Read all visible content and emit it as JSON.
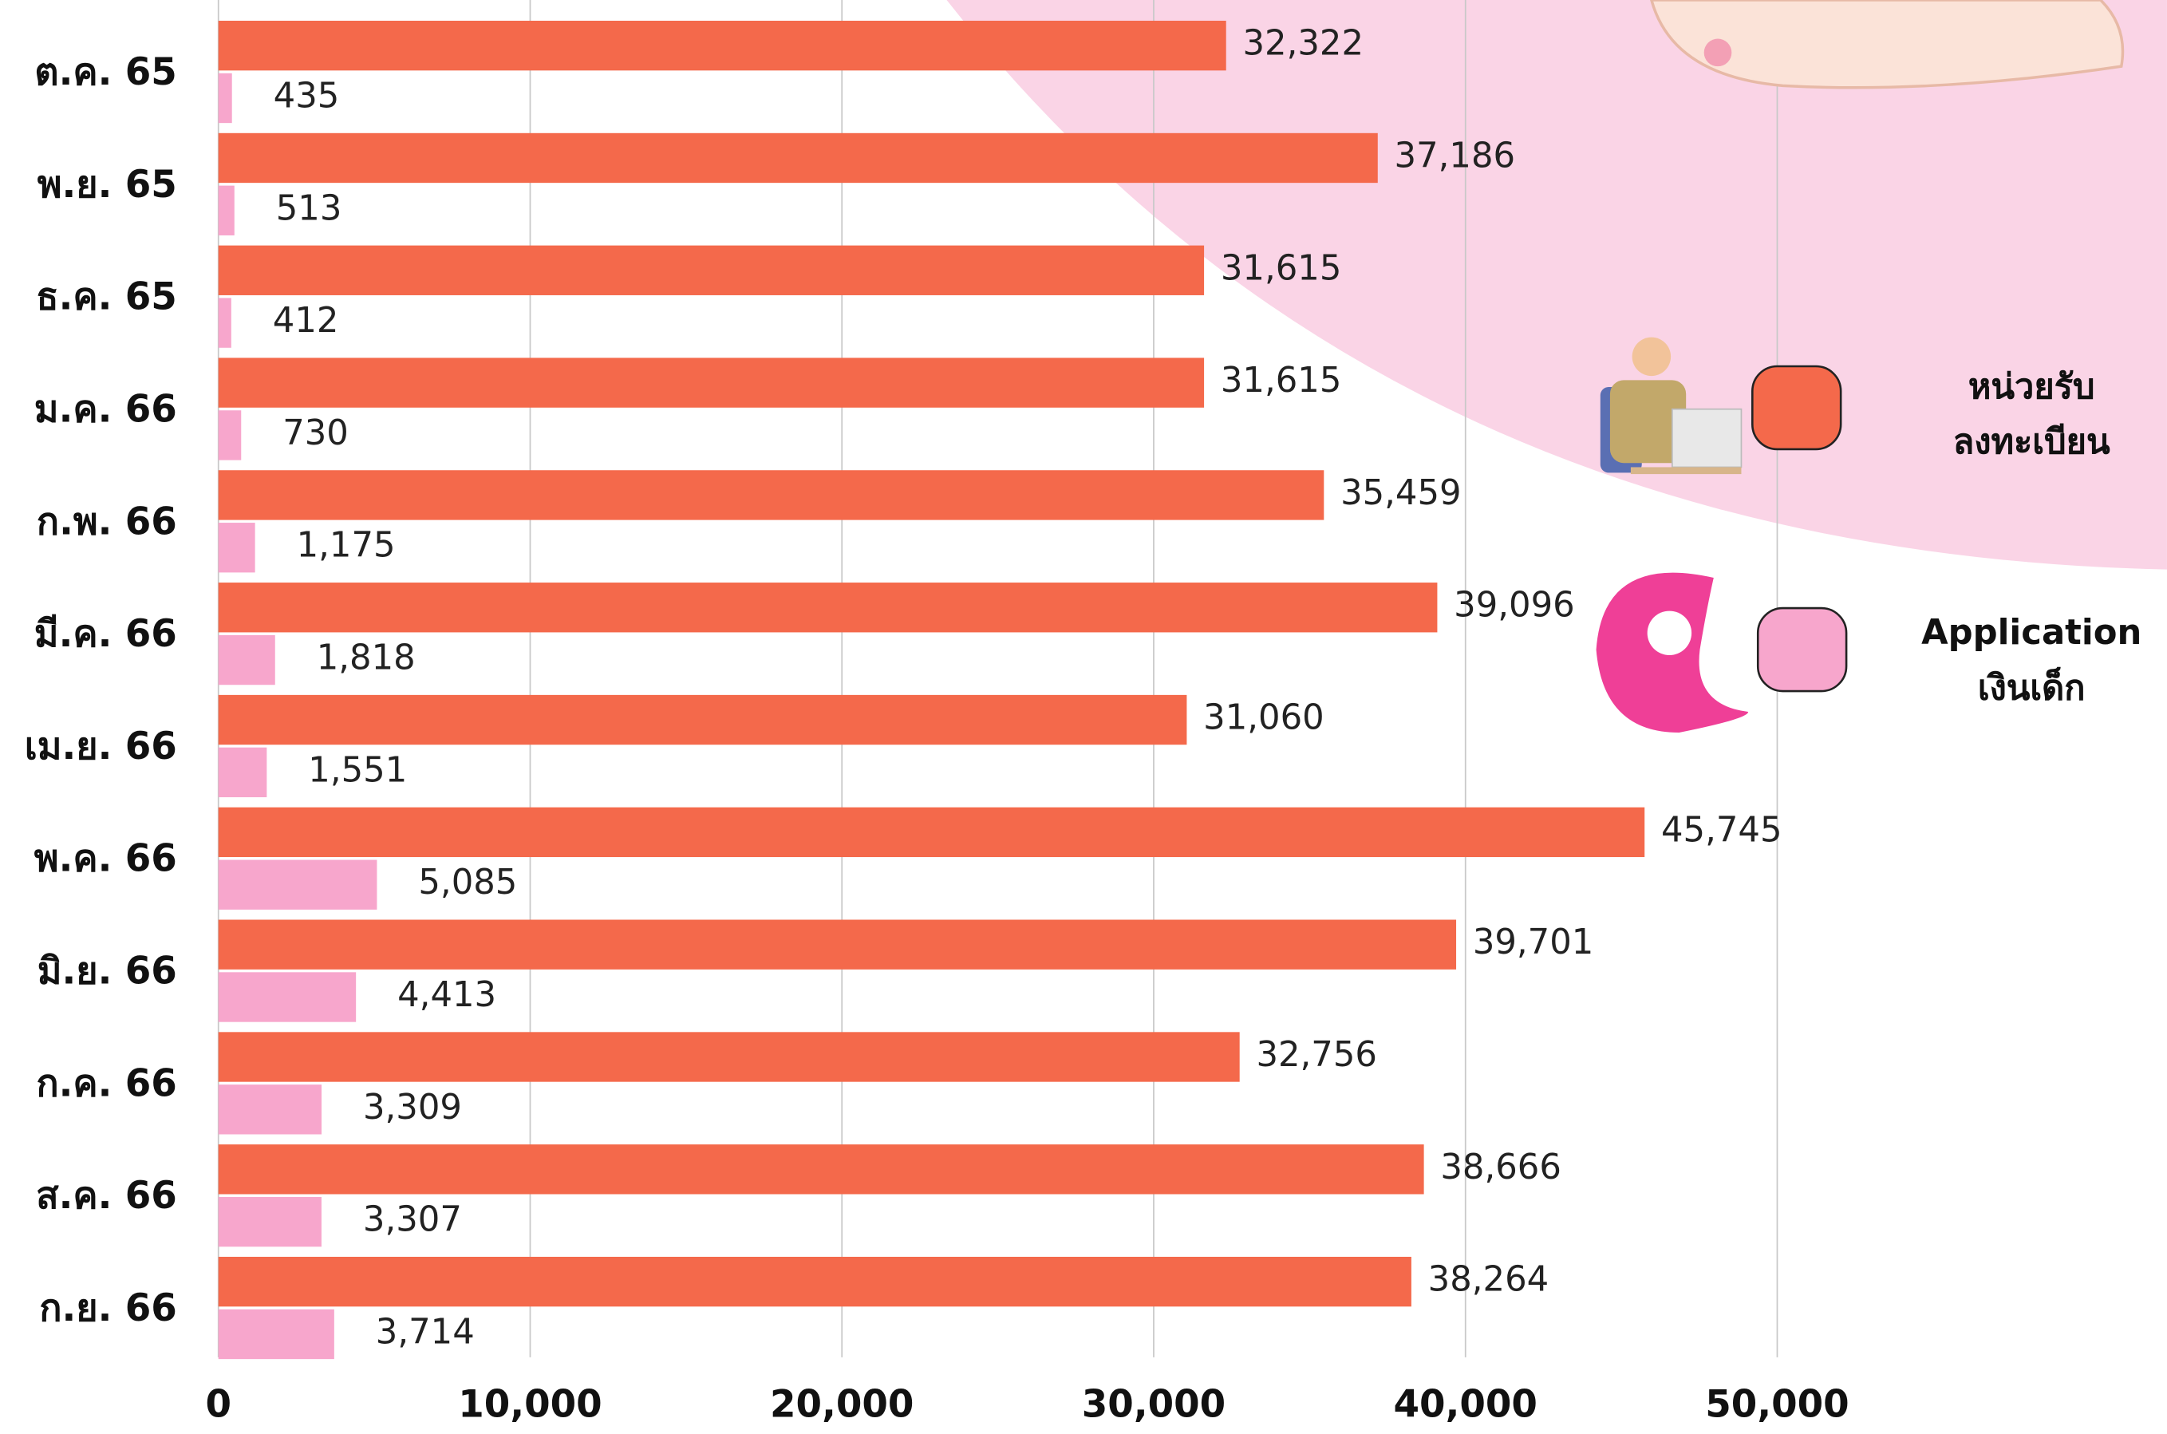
{
  "chart_data": {
    "type": "hbar",
    "categories": [
      "ต.ค. 65",
      "พ.ย. 65",
      "ธ.ค. 65",
      "ม.ค. 66",
      "ก.พ. 66",
      "มี.ค. 66",
      "เม.ย. 66",
      "พ.ค. 66",
      "มิ.ย. 66",
      "ก.ค. 66",
      "ส.ค. 66",
      "ก.ย. 66"
    ],
    "series": [
      {
        "name": "หน่วยรับ ลงทะเบียน",
        "color": "#f4694b",
        "values": [
          32322,
          37186,
          31615,
          31615,
          35459,
          39096,
          31060,
          45745,
          39701,
          32756,
          38666,
          38264
        ],
        "value_labels": [
          "32,322",
          "37,186",
          "31,615",
          "31,615",
          "35,459",
          "39,096",
          "31,060",
          "45,745",
          "39,701",
          "32,756",
          "38,666",
          "38,264"
        ]
      },
      {
        "name": "Application เงินเด็ก",
        "color": "#f7a6cc",
        "values": [
          435,
          513,
          412,
          730,
          1175,
          1818,
          1551,
          5085,
          4413,
          3309,
          3307,
          3714
        ],
        "value_labels": [
          "435",
          "513",
          "412",
          "730",
          "1,175",
          "1,818",
          "1,551",
          "5,085",
          "4,413",
          "3,309",
          "3,307",
          "3,714"
        ]
      }
    ],
    "xlim": [
      0,
      62500
    ],
    "xticks": [
      0,
      {
        "value": 10000,
        "label": "10,000"
      },
      {
        "value": 20000,
        "label": "20,000"
      },
      {
        "value": 30000,
        "label": "30,000"
      },
      {
        "value": 40000,
        "label": "40,000"
      },
      {
        "value": 50000,
        "label": "50,000"
      }
    ],
    "grid": true
  }
}
